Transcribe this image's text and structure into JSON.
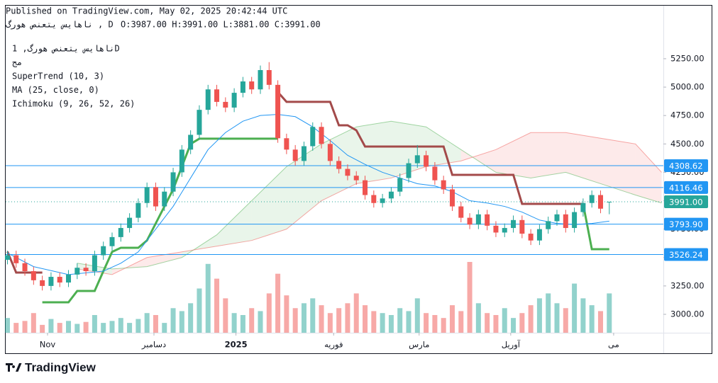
{
  "chart_data": {
    "type": "candlestick",
    "published": "Published on TradingView.com, May 02, 2025 20:42:44 UTC",
    "symbol_line": "ناهایس یتعنص هورگ , D",
    "ohlc_line": "O:3987.00 H:3991.00 L:3881.00 C:3991.00",
    "legend": [
      "ناهایس یتعنص هورگ, 1D",
      "مج",
      "SuperTrend (10, 3)",
      "MA (25, close, 0)",
      "Ichimoku (9, 26, 52, 26)"
    ],
    "brand": "TradingView",
    "up_color": "#26a69a",
    "down_color": "#ef5350",
    "xlim": [
      -0.2,
      75.2
    ],
    "xticks": [
      {
        "value": 4.6,
        "label": "Nov"
      },
      {
        "value": 16.8,
        "label": "دسامبر"
      },
      {
        "value": 26.2,
        "label": "2025",
        "bold": true
      },
      {
        "value": 37.4,
        "label": "فوریه"
      },
      {
        "value": 47.2,
        "label": "مارس"
      },
      {
        "value": 57.7,
        "label": "آوریل"
      },
      {
        "value": 69.5,
        "label": "می"
      }
    ],
    "ylim": [
      2838,
      5717
    ],
    "yticks": [
      {
        "value": 3000,
        "label": "3000.00"
      },
      {
        "value": 3250,
        "label": "3250.00"
      },
      {
        "value": 3500,
        "label": "3500.00"
      },
      {
        "value": 3750,
        "label": "3750.00"
      },
      {
        "value": 4000,
        "label": "4000.00"
      },
      {
        "value": 4250,
        "label": "4250.00"
      },
      {
        "value": 4500,
        "label": "4500.00"
      },
      {
        "value": 4750,
        "label": "4750.00"
      },
      {
        "value": 5000,
        "label": "5000.00"
      },
      {
        "value": 5250,
        "label": "5250.00"
      }
    ],
    "open": [
      3480,
      3520,
      3450,
      3380,
      3300,
      3250,
      3330,
      3280,
      3350,
      3410,
      3380,
      3520,
      3600,
      3680,
      3760,
      3850,
      3980,
      4120,
      3950,
      4080,
      4250,
      4450,
      4580,
      4800,
      4980,
      4870,
      4820,
      4950,
      5050,
      4980,
      5150,
      5020,
      4550,
      4450,
      4350,
      4480,
      4650,
      4500,
      4350,
      4280,
      4220,
      4180,
      4050,
      3980,
      4020,
      4080,
      4200,
      4330,
      4400,
      4300,
      4180,
      4100,
      3950,
      3850,
      3790,
      3880,
      3780,
      3720,
      3760,
      3830,
      3710,
      3650,
      3750,
      3820,
      3880,
      3760,
      3900,
      3980,
      4050,
      3987
    ],
    "high": [
      3560,
      3560,
      3490,
      3420,
      3340,
      3370,
      3370,
      3390,
      3450,
      3450,
      3560,
      3640,
      3720,
      3800,
      3890,
      4020,
      4160,
      4160,
      4120,
      4290,
      4490,
      4620,
      4840,
      5020,
      5020,
      4910,
      4990,
      5090,
      5090,
      5190,
      5220,
      5060,
      4590,
      4490,
      4520,
      4690,
      4690,
      4540,
      4390,
      4320,
      4260,
      4220,
      4090,
      4060,
      4120,
      4240,
      4370,
      4490,
      4440,
      4340,
      4220,
      4140,
      3990,
      3890,
      3920,
      3920,
      3820,
      3800,
      3870,
      3870,
      3750,
      3790,
      3860,
      3920,
      3920,
      3940,
      4020,
      4090,
      4090,
      3991
    ],
    "low": [
      3440,
      3410,
      3340,
      3260,
      3210,
      3210,
      3240,
      3240,
      3310,
      3340,
      3340,
      3480,
      3560,
      3640,
      3720,
      3810,
      3940,
      3910,
      3910,
      4040,
      4210,
      4410,
      4540,
      4760,
      4830,
      4780,
      4780,
      4910,
      4940,
      4940,
      4980,
      4510,
      4410,
      4310,
      4310,
      4440,
      4460,
      4310,
      4240,
      4180,
      4140,
      4010,
      3940,
      3940,
      3980,
      4040,
      4160,
      4290,
      4260,
      4140,
      4060,
      3910,
      3810,
      3750,
      3750,
      3740,
      3680,
      3680,
      3720,
      3670,
      3610,
      3610,
      3710,
      3780,
      3720,
      3720,
      3860,
      3940,
      3890,
      3881
    ],
    "close": [
      3520,
      3450,
      3380,
      3300,
      3250,
      3330,
      3280,
      3350,
      3410,
      3380,
      3520,
      3600,
      3680,
      3760,
      3850,
      3980,
      4120,
      3950,
      4080,
      4250,
      4450,
      4580,
      4800,
      4980,
      4870,
      4820,
      4950,
      5050,
      4980,
      5150,
      5020,
      4550,
      4450,
      4350,
      4480,
      4650,
      4500,
      4350,
      4280,
      4220,
      4180,
      4050,
      3980,
      4020,
      4080,
      4200,
      4330,
      4400,
      4300,
      4180,
      4100,
      3950,
      3850,
      3790,
      3880,
      3780,
      3720,
      3760,
      3830,
      3710,
      3650,
      3750,
      3820,
      3880,
      3760,
      3900,
      3980,
      4050,
      3930,
      3991
    ],
    "volume": [
      15,
      10,
      12,
      20,
      8,
      14,
      10,
      12,
      9,
      11,
      18,
      10,
      12,
      15,
      10,
      14,
      20,
      18,
      10,
      25,
      22,
      30,
      45,
      70,
      55,
      35,
      20,
      18,
      25,
      22,
      40,
      60,
      38,
      25,
      30,
      35,
      28,
      20,
      25,
      30,
      40,
      28,
      22,
      20,
      18,
      25,
      22,
      35,
      20,
      18,
      15,
      28,
      22,
      72,
      30,
      20,
      18,
      25,
      15,
      20,
      28,
      35,
      40,
      30,
      25,
      50,
      35,
      28,
      22,
      40
    ],
    "series": [
      {
        "name": "SuperTrend down",
        "color": "#a34a4a",
        "values": [
          3553,
          3368,
          3368,
          3368,
          3368,
          null,
          null,
          null,
          null,
          null,
          null,
          null,
          null,
          null,
          null,
          null,
          null,
          null,
          null,
          null,
          null,
          null,
          null,
          null,
          null,
          null,
          null,
          null,
          null,
          null,
          null,
          4957,
          4870,
          4870,
          4870,
          4870,
          4870,
          4870,
          4664,
          4664,
          4620,
          4477,
          4477,
          4477,
          4477,
          4477,
          4477,
          4477,
          4477,
          4477,
          4477,
          4228,
          4228,
          4228,
          4228,
          4228,
          4228,
          4228,
          4228,
          3972,
          3972,
          3972,
          3972,
          3972,
          3972,
          3972,
          3972,
          null,
          null,
          null
        ]
      },
      {
        "name": "SuperTrend up",
        "color": "#4caf50",
        "values": [
          null,
          null,
          null,
          null,
          3106,
          3106,
          3106,
          3106,
          3206,
          3206,
          3206,
          3380,
          3550,
          3586,
          3586,
          3586,
          3650,
          3800,
          3950,
          4100,
          4300,
          4500,
          4546,
          4546,
          4546,
          4546,
          4546,
          4546,
          4546,
          4546,
          4546,
          4546,
          null,
          null,
          null,
          null,
          null,
          null,
          null,
          null,
          null,
          null,
          null,
          null,
          null,
          null,
          null,
          null,
          null,
          null,
          null,
          null,
          null,
          null,
          null,
          null,
          null,
          null,
          null,
          null,
          null,
          null,
          null,
          null,
          null,
          null,
          3972,
          3573,
          3573,
          3573
        ]
      },
      {
        "name": "MA",
        "color": "#2196f3",
        "x": [
          0,
          3,
          7,
          11,
          13,
          15,
          17,
          19,
          21,
          23,
          25,
          27,
          29,
          31,
          33,
          35,
          37,
          39,
          41,
          43,
          45,
          47,
          49,
          51,
          53,
          55,
          57,
          59,
          61,
          63,
          65,
          67,
          69
        ],
        "values": [
          3540,
          3420,
          3350,
          3380,
          3450,
          3550,
          3750,
          3950,
          4200,
          4450,
          4600,
          4700,
          4750,
          4760,
          4740,
          4650,
          4530,
          4400,
          4320,
          4250,
          4200,
          4150,
          4130,
          4080,
          4000,
          3980,
          3950,
          3900,
          3830,
          3800,
          3790,
          3800,
          3820
        ]
      }
    ],
    "cloud": {
      "x": [
        8,
        12,
        16,
        20,
        24,
        28,
        32,
        36,
        40,
        44,
        48,
        52,
        56,
        60,
        64,
        68,
        72,
        75
      ],
      "span_a": {
        "color": "#4caf50",
        "values": [
          3450,
          3400,
          3420,
          3500,
          3700,
          4000,
          4300,
          4500,
          4650,
          4700,
          4650,
          4450,
          4250,
          4200,
          4250,
          4150,
          4050,
          3980
        ]
      },
      "span_b": {
        "color": "#ef5350",
        "values": [
          3400,
          3350,
          3500,
          3550,
          3600,
          3650,
          3750,
          4000,
          4150,
          4200,
          4300,
          4350,
          4450,
          4600,
          4600,
          4550,
          4500,
          4250
        ]
      }
    },
    "price_lines": [
      {
        "value": 4308.62,
        "color": "#2196f3"
      },
      {
        "value": 4116.46,
        "color": "#2196f3"
      },
      {
        "value": 3991,
        "label": "3991.00",
        "color": "#26a69a",
        "dotted": true
      },
      {
        "value": 3793.9,
        "label": "3793.90",
        "color": "#2196f3"
      },
      {
        "value": 3526.24,
        "color": "#2196f3"
      }
    ]
  }
}
